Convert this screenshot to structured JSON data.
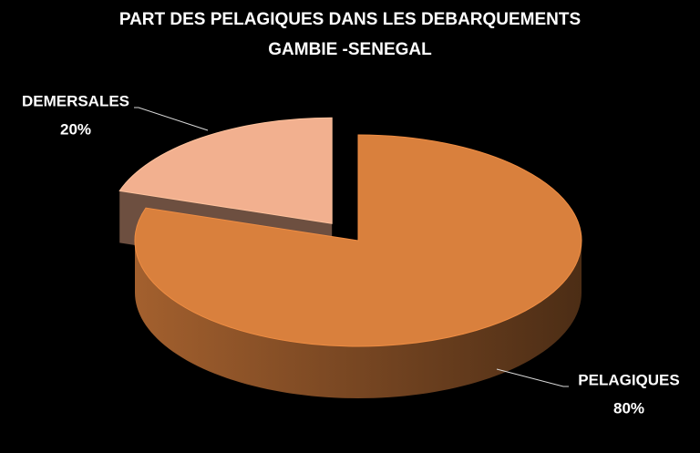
{
  "chart_data": {
    "type": "pie3d",
    "title": "PART DES PELAGIQUES DANS LES DEBARQUEMENTS",
    "subtitle": "GAMBIE -SENEGAL",
    "categories": [
      "PELAGIQUES",
      "DEMERSALES"
    ],
    "values": [
      80,
      20
    ],
    "value_labels": [
      "80%",
      "20%"
    ],
    "colors": [
      "#d9803d",
      "#f2b08f"
    ]
  }
}
